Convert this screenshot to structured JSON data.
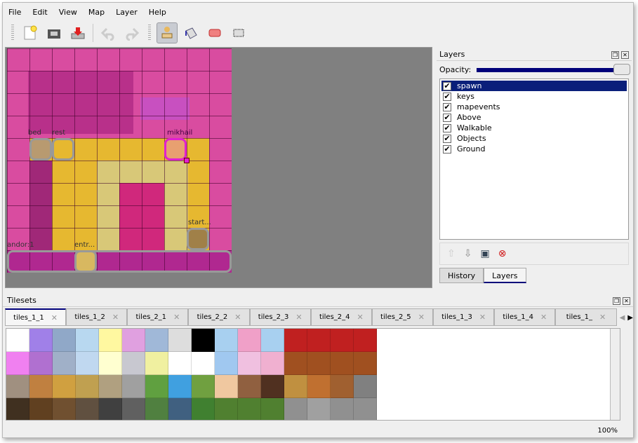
{
  "menu": [
    "File",
    "Edit",
    "View",
    "Map",
    "Layer",
    "Help"
  ],
  "toolbar": {
    "icons": [
      "new-icon",
      "open-icon",
      "save-icon",
      "undo-icon",
      "redo-icon",
      "stamp-brush-icon",
      "bucket-fill-icon",
      "eraser-icon",
      "rectangle-select-icon"
    ],
    "active": "stamp-brush-icon"
  },
  "map": {
    "objects": [
      {
        "label": "bed"
      },
      {
        "label": "rest"
      },
      {
        "label": "mikhail"
      },
      {
        "label": "start"
      },
      {
        "label": "andor"
      },
      {
        "label": "entr"
      }
    ],
    "object_labels": {
      "bed": "bed",
      "rest": "rest",
      "mikhail": "mikhail",
      "start": "start...",
      "andor": "andor:1",
      "entr": "entr..."
    }
  },
  "layers_panel": {
    "title": "Layers",
    "opacity_label": "Opacity:",
    "opacity": 1.0,
    "layers": [
      {
        "name": "spawn",
        "visible": true,
        "selected": true
      },
      {
        "name": "keys",
        "visible": true
      },
      {
        "name": "mapevents",
        "visible": true
      },
      {
        "name": "Above",
        "visible": true
      },
      {
        "name": "Walkable",
        "visible": true
      },
      {
        "name": "Objects",
        "visible": true
      },
      {
        "name": "Ground",
        "visible": true
      }
    ],
    "tabs": [
      "History",
      "Layers"
    ],
    "active_tab": "Layers"
  },
  "tilesets_panel": {
    "title": "Tilesets",
    "tabs": [
      "tiles_1_1",
      "tiles_1_2",
      "tiles_2_1",
      "tiles_2_2",
      "tiles_2_3",
      "tiles_2_4",
      "tiles_2_5",
      "tiles_1_3",
      "tiles_1_4",
      "tiles_1_"
    ],
    "active": "tiles_1_1"
  },
  "status": {
    "zoom": "100%"
  }
}
